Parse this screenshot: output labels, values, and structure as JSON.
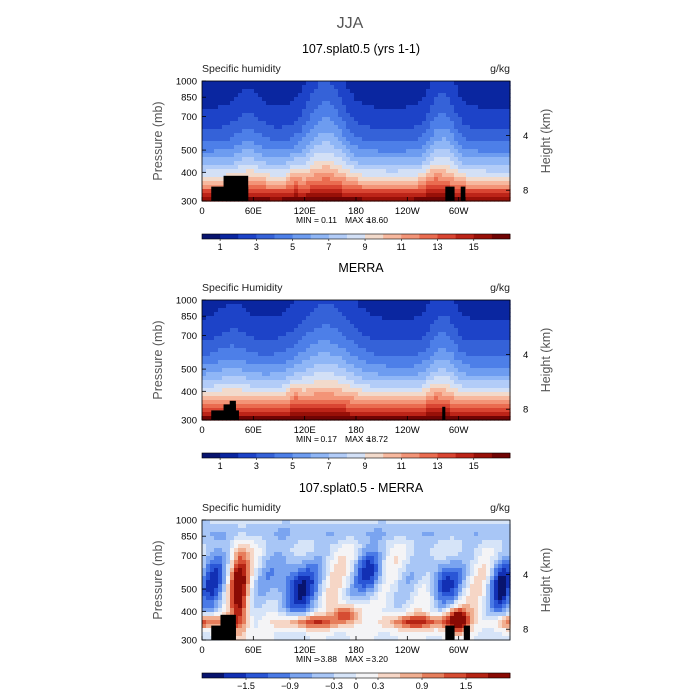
{
  "title": "JJA",
  "chart_data": [
    {
      "type": "heatmap",
      "title": "107.splat0.5 (yrs 1-1)",
      "variable": "Specific humidity",
      "units": "g/kg",
      "ylabel": "Pressure (mb)",
      "y2label": "Height (km)",
      "x_tick_labels": [
        "0",
        "60E",
        "120E",
        "180",
        "120W",
        "60W"
      ],
      "y_tick_labels": [
        "300",
        "400",
        "500",
        "700",
        "850",
        "1000"
      ],
      "y2_tick_labels": [
        "8",
        "4"
      ],
      "min_label": "MIN =",
      "min_value": "0.11",
      "max_label": "MAX =",
      "max_value": "18.60",
      "colorbar_labels": [
        "1",
        "3",
        "5",
        "7",
        "9",
        "11",
        "13",
        "15"
      ],
      "colorbar_levels": 16,
      "xlim": [
        0,
        360
      ],
      "ylim": [
        1000,
        300
      ],
      "colors": [
        "#08146e",
        "#0a26a0",
        "#1d43c8",
        "#3562d8",
        "#4d7fe8",
        "#6d9cf0",
        "#8fb6f6",
        "#b2ccf8",
        "#d3e0f6",
        "#f2dacb",
        "#f7b89e",
        "#f39477",
        "#ea6c50",
        "#d94532",
        "#bc2418",
        "#981008",
        "#700404"
      ]
    },
    {
      "type": "heatmap",
      "title": "MERRA",
      "variable": "Specific Humidity",
      "units": "g/kg",
      "ylabel": "Pressure (mb)",
      "y2label": "Height (km)",
      "x_tick_labels": [
        "0",
        "60E",
        "120E",
        "180",
        "120W",
        "60W"
      ],
      "y_tick_labels": [
        "300",
        "400",
        "500",
        "700",
        "850",
        "1000"
      ],
      "y2_tick_labels": [
        "8",
        "4"
      ],
      "min_label": "MIN =",
      "min_value": "0.17",
      "max_label": "MAX =",
      "max_value": "18.72",
      "colorbar_labels": [
        "1",
        "3",
        "5",
        "7",
        "9",
        "11",
        "13",
        "15"
      ],
      "colorbar_levels": 16,
      "xlim": [
        0,
        360
      ],
      "ylim": [
        1000,
        300
      ]
    },
    {
      "type": "heatmap",
      "title": "107.splat0.5 - MERRA",
      "variable": "Specific humidity",
      "units": "g/kg",
      "ylabel": "Pressure (mb)",
      "y2label": "Height (km)",
      "x_tick_labels": [
        "0",
        "60E",
        "120E",
        "180",
        "120W",
        "60W"
      ],
      "y_tick_labels": [
        "300",
        "400",
        "500",
        "700",
        "850",
        "1000"
      ],
      "y2_tick_labels": [
        "8",
        "4"
      ],
      "min_label": "MIN =",
      "min_value": "-3.88",
      "max_label": "MAX =",
      "max_value": "3.20",
      "colorbar_labels": [
        "−1.5",
        "−0.9",
        "−0.3",
        "0",
        "0.3",
        "0.9",
        "1.5"
      ],
      "colorbar_levels": 14,
      "xlim": [
        0,
        360
      ],
      "ylim": [
        1000,
        300
      ],
      "colors": [
        "#08146e",
        "#1230b4",
        "#2a56d6",
        "#4a7ae6",
        "#7aa4f0",
        "#a8c6f6",
        "#d6e4f8",
        "#f4f4f6",
        "#f6d6c6",
        "#f0ae90",
        "#e67e5c",
        "#d64c32",
        "#b62414",
        "#8a0a04"
      ]
    }
  ]
}
